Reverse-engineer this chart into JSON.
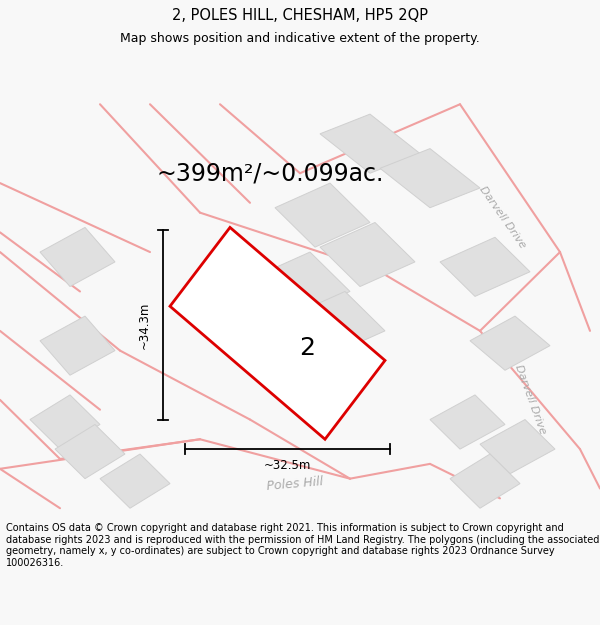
{
  "title": "2, POLES HILL, CHESHAM, HP5 2QP",
  "subtitle": "Map shows position and indicative extent of the property.",
  "area_label": "~399m²/~0.099ac.",
  "number_label": "2",
  "dim_width": "~32.5m",
  "dim_height": "~34.3m",
  "footer": "Contains OS data © Crown copyright and database right 2021. This information is subject to Crown copyright and database rights 2023 and is reproduced with the permission of HM Land Registry. The polygons (including the associated geometry, namely x, y co-ordinates) are subject to Crown copyright and database rights 2023 Ordnance Survey 100026316.",
  "bg_color": "#f8f8f8",
  "map_bg": "#ffffff",
  "plot_color_fill": "#ffffff",
  "plot_color_edge": "#dd0000",
  "road_color": "#f0a0a0",
  "road_color2": "#c8c8c8",
  "building_color": "#e0e0e0",
  "building_edge": "#d0d0d0",
  "road_label_color": "#aaaaaa",
  "title_fontsize": 10.5,
  "subtitle_fontsize": 9,
  "area_fontsize": 17,
  "footer_fontsize": 7,
  "dim_fontsize": 8.5,
  "number_fontsize": 18
}
